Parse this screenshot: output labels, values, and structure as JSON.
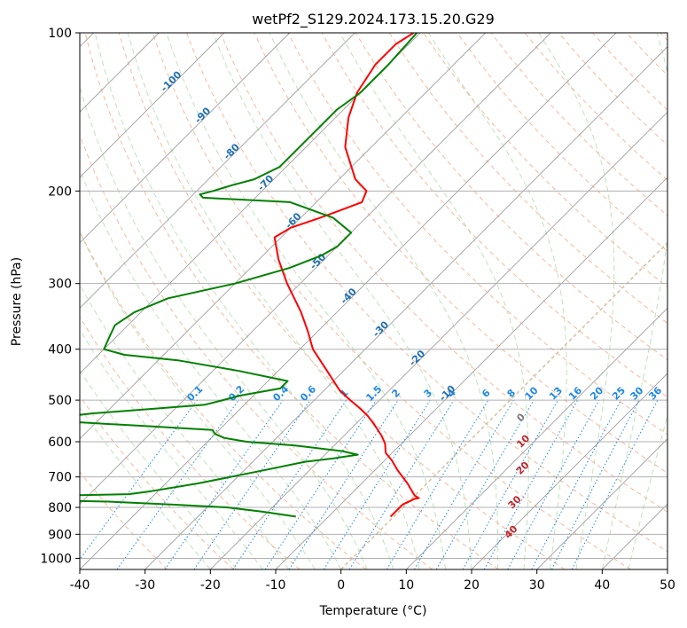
{
  "chart_data": {
    "type": "line",
    "title": "wetPf2_S129.2024.173.15.20.G29",
    "xlabel": "Temperature (°C)",
    "ylabel": "Pressure (hPa)",
    "xlim": [
      -40,
      50
    ],
    "ylim": [
      1050,
      100
    ],
    "y_scale": "log",
    "grid": true,
    "x_ticks": [
      -40,
      -30,
      -20,
      -10,
      0,
      10,
      20,
      30,
      40,
      50
    ],
    "y_ticks": [
      100,
      200,
      300,
      400,
      500,
      600,
      700,
      800,
      900,
      1000
    ],
    "colors": {
      "temperature": "#ff0000",
      "dewpoint": "#008000",
      "grid": "#b0b0b0",
      "skew_isotherms": "#a0a0a0",
      "dry_adiabats": "#f4a582",
      "moist_adiabats": "#a6d8a0",
      "mixing_ratio": "#1e88e5",
      "isotherm_0": "#d8c3a5"
    },
    "series": [
      {
        "key": "temperature",
        "pressure": [
          833,
          790,
          770,
          768,
          760,
          720,
          680,
          650,
          630,
          605,
          585,
          565,
          548,
          535,
          520,
          500,
          480,
          440,
          400,
          370,
          340,
          300,
          270,
          245,
          235,
          225,
          210,
          200,
          190,
          165,
          145,
          130,
          115,
          105,
          100
        ],
        "values": [
          -0.5,
          -0.5,
          0.5,
          1.0,
          0.0,
          -3.0,
          -6.5,
          -9.0,
          -11.0,
          -12.5,
          -14.2,
          -16.2,
          -18.0,
          -19.5,
          -21.5,
          -24.5,
          -27.5,
          -32.5,
          -38.0,
          -41.5,
          -45.5,
          -52.0,
          -57.0,
          -61.0,
          -60.0,
          -57.0,
          -53.0,
          -54.0,
          -57.5,
          -64.0,
          -68.0,
          -70.5,
          -72.0,
          -72.0,
          -71.0
        ]
      },
      {
        "key": "dewpoint",
        "pressure": [
          833,
          815,
          800,
          790,
          780,
          775,
          770,
          765,
          762,
          760,
          755,
          745,
          720,
          680,
          655,
          645,
          635,
          625,
          610,
          600,
          590,
          580,
          570,
          560,
          550,
          540,
          530,
          520,
          510,
          500,
          490,
          475,
          460,
          440,
          420,
          410,
          400,
          380,
          360,
          340,
          320,
          300,
          280,
          265,
          255,
          240,
          225,
          210,
          206,
          203,
          200,
          195,
          190,
          180,
          160,
          140,
          130,
          115,
          100
        ],
        "values": [
          -15.0,
          -21.0,
          -27.0,
          -36.0,
          -46.0,
          -58.0,
          -70.0,
          -76.0,
          -72.0,
          -55.0,
          -44.0,
          -41.0,
          -35.0,
          -27.0,
          -22.0,
          -18.0,
          -15.0,
          -18.0,
          -26.0,
          -34.0,
          -38.0,
          -40.0,
          -41.0,
          -52.0,
          -64.0,
          -67.0,
          -62.0,
          -54.0,
          -46.0,
          -44.0,
          -42.0,
          -37.0,
          -37.0,
          -46.0,
          -57.0,
          -66.0,
          -70.0,
          -71.0,
          -72.0,
          -71.0,
          -68.0,
          -60.0,
          -54.0,
          -51.0,
          -50.0,
          -50.0,
          -55.0,
          -64.0,
          -78.0,
          -79.0,
          -77.5,
          -75.5,
          -73.0,
          -71.0,
          -71.0,
          -71.0,
          -70.0,
          -70.0,
          -70.5
        ]
      }
    ],
    "mixing_ratio_labels": [
      "0.1",
      "0.2",
      "0.4",
      "0.6",
      "1",
      "1.5",
      "2",
      "3",
      "4",
      "6",
      "8",
      "10",
      "13",
      "16",
      "20",
      "25",
      "30",
      "36"
    ],
    "dry_adiabat_labels": [
      "-100",
      "-90",
      "-80",
      "-70",
      "-60",
      "-50",
      "-40",
      "-30",
      "-20",
      "-10"
    ],
    "moist_adiabat_labels": [
      "0",
      "10",
      "20",
      "30",
      "40"
    ]
  }
}
